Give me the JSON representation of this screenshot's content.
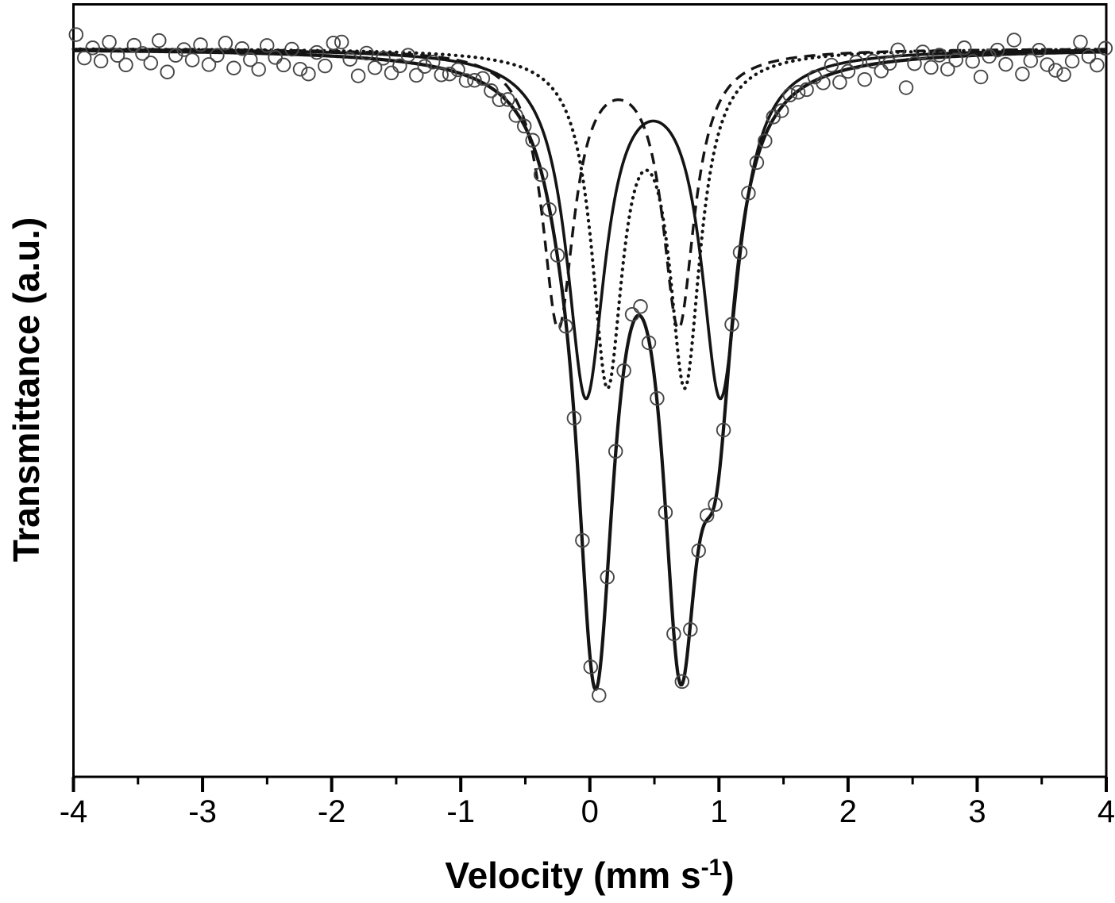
{
  "chart_data": {
    "type": "line+scatter",
    "title": "",
    "xlabel_pre": "Velocity (mm s",
    "xlabel_sup": "-1",
    "xlabel_post": ")",
    "ylabel": "Transmittance (a.u.)",
    "xlim": [
      -4,
      4
    ],
    "x_major_ticks": [
      -4,
      -3,
      -2,
      -1,
      0,
      1,
      2,
      3,
      4
    ],
    "x_tick_labels": [
      "-4",
      "-3",
      "-2",
      "-1",
      "0",
      "1",
      "2",
      "3",
      "4"
    ],
    "x_minor_tick_step": 0.5,
    "y_axis_arbitrary_units": true,
    "baseline_au": 1.0,
    "grid": false,
    "legend": false,
    "colors": {
      "curve": "#141414",
      "marker": "#474747",
      "frame": "#000000",
      "background": "#ffffff"
    },
    "series": [
      {
        "name": "component-doublet-dashed",
        "style": "dashed",
        "lines": [
          {
            "center": -0.245,
            "depth": 0.375,
            "hwhm": 0.15
          },
          {
            "center": 0.687,
            "depth": 0.375,
            "hwhm": 0.15
          }
        ]
      },
      {
        "name": "component-doublet-dotted",
        "style": "dotted",
        "lines": [
          {
            "center": 0.135,
            "depth": 0.442,
            "hwhm": 0.145
          },
          {
            "center": 0.736,
            "depth": 0.442,
            "hwhm": 0.145
          }
        ]
      },
      {
        "name": "component-doublet-solid",
        "style": "solid",
        "lines": [
          {
            "center": -0.03,
            "depth": 0.467,
            "hwhm": 0.18
          },
          {
            "center": 1.012,
            "depth": 0.467,
            "hwhm": 0.18
          }
        ]
      },
      {
        "name": "total-fit",
        "style": "total",
        "lines": [
          {
            "center": 0.042,
            "depth": 0.816,
            "hwhm": 0.18
          },
          {
            "center": 0.7,
            "depth": 0.718,
            "hwhm": 0.17
          },
          {
            "center": 0.98,
            "depth": 0.39,
            "hwhm": 0.16
          },
          {
            "center": -0.245,
            "depth": 0.033,
            "hwhm": 0.15
          }
        ]
      }
    ],
    "experimental": {
      "name": "experimental-data",
      "marker": "open-circle",
      "x_start": -3.98,
      "x_step": 0.0643,
      "noise_au": [
        -0.022,
        0.01,
        -0.004,
        0.014,
        -0.012,
        0.006,
        0.019,
        -0.008,
        0.003,
        0.016,
        -0.015,
        0.028,
        0.005,
        -0.003,
        0.011,
        -0.01,
        0.017,
        0.004,
        -0.013,
        0.021,
        -0.006,
        0.009,
        0.022,
        -0.011,
        0.005,
        0.015,
        -0.007,
        0.02,
        0.026,
        -0.004,
        0.014,
        -0.018,
        -0.02,
        0.003,
        0.025,
        -0.007,
        0.012,
        -0.002,
        0.017,
        0.006,
        -0.01,
        0.016,
        0.002,
        -0.006,
        0.009,
        0.005,
        -0.004,
        0.007,
        0.002,
        -0.006,
        0.004,
        0.008,
        -0.003,
        0.005,
        0.001,
        -0.005,
        0.006,
        0.003,
        -0.002,
        0.007,
        0.004,
        -0.006,
        0.003,
        0.025,
        0.004,
        -0.003,
        0.002,
        -0.015,
        -0.013,
        0.004,
        -0.005,
        0.006,
        0.002,
        -0.004,
        0.007,
        0.003,
        -0.006,
        0.004,
        0.002,
        -0.005,
        0.006,
        -0.002,
        0.004,
        0.007,
        -0.003,
        0.005,
        -0.004,
        0.002,
        0.006,
        -0.005,
        0.008,
        -0.012,
        0.015,
        0.003,
        -0.007,
        0.019,
        -0.004,
        0.011,
        0.002,
        -0.015,
        0.038,
        0.006,
        -0.009,
        0.013,
        -0.003,
        0.017,
        0.005,
        -0.011,
        0.008,
        0.03,
        0.002,
        -0.006,
        0.014,
        -0.019,
        0.028,
        0.01,
        -0.004,
        0.016,
        0.024,
        0.03,
        0.012,
        -0.014,
        0.006,
        0.018,
        -0.005
      ]
    }
  }
}
